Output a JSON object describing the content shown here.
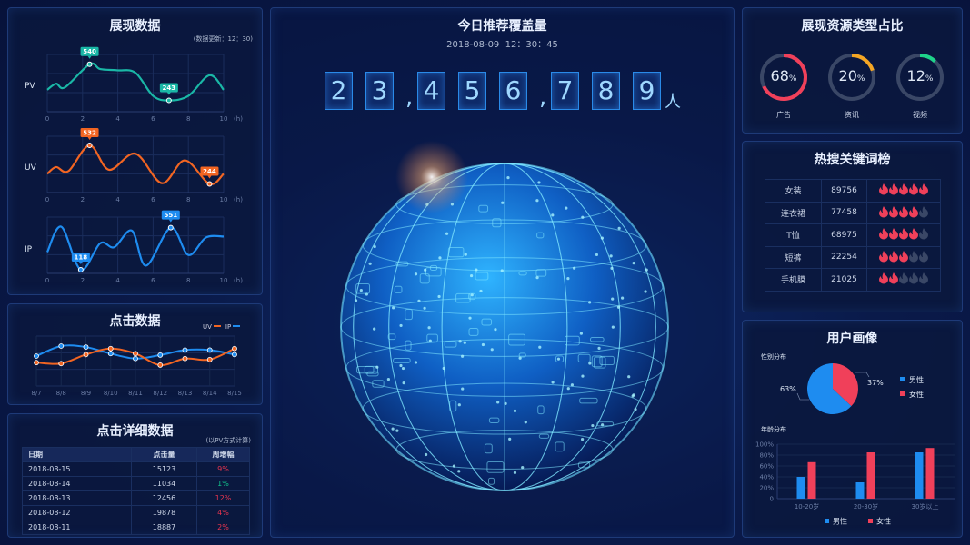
{
  "panels": {
    "display": {
      "title": "展现数据",
      "update": "(数据更新：12：30)"
    },
    "clicks": {
      "title": "点击数据"
    },
    "details": {
      "title": "点击详细数据",
      "note": "(以PV方式计算)",
      "headers": [
        "日期",
        "点击量",
        "周增幅"
      ],
      "rows": [
        [
          "2018-08-15",
          "15123",
          "9%"
        ],
        [
          "2018-08-14",
          "11034",
          "1%"
        ],
        [
          "2018-08-13",
          "12456",
          "12%"
        ],
        [
          "2018-08-12",
          "19878",
          "4%"
        ],
        [
          "2018-08-11",
          "18887",
          "2%"
        ]
      ],
      "change_colors": [
        "#e8354f",
        "#12c08a",
        "#e8354f",
        "#e8354f",
        "#e8354f"
      ]
    },
    "center": {
      "title": "今日推荐覆盖量",
      "datetime": "2018-08-09  12：30：45",
      "digits": [
        "2",
        "3",
        ",",
        "4",
        "5",
        "6",
        ",",
        "7",
        "8",
        "9"
      ],
      "unit": "人"
    },
    "resource": {
      "title": "展现资源类型占比",
      "items": [
        {
          "label": "广告",
          "value": 68,
          "color": "#f0405a"
        },
        {
          "label": "资讯",
          "value": 20,
          "color": "#f5a623"
        },
        {
          "label": "视频",
          "value": 12,
          "color": "#1ed38a"
        }
      ],
      "pct": "%"
    },
    "hot": {
      "title": "热搜关键词榜",
      "rows": [
        {
          "word": "女装",
          "count": "89756",
          "rating": 5
        },
        {
          "word": "连衣裙",
          "count": "77458",
          "rating": 4
        },
        {
          "word": "T恤",
          "count": "68975",
          "rating": 4
        },
        {
          "word": "短裤",
          "count": "22254",
          "rating": 3
        },
        {
          "word": "手机膜",
          "count": "21025",
          "rating": 2
        }
      ],
      "flame_on": "#f0405a",
      "flame_off": "#3a4766",
      "icon": "flame-icon"
    },
    "user": {
      "title": "用户画像",
      "gender_title": "性别分布",
      "age_title": "年龄分布"
    }
  },
  "chart_data": [
    {
      "type": "line",
      "name": "PV",
      "color": "#1ab7a6",
      "x": [
        0,
        0.5,
        1,
        2.4,
        3,
        4,
        5,
        6,
        6.9,
        8,
        9.2,
        10
      ],
      "y": [
        330,
        380,
        350,
        540,
        500,
        490,
        470,
        280,
        243,
        280,
        450,
        330
      ],
      "labels": [
        {
          "x": 2.4,
          "text": "540"
        },
        {
          "x": 6.9,
          "text": "243"
        }
      ],
      "xticks": [
        "0",
        "2",
        "4",
        "6",
        "8",
        "10"
      ],
      "xunit": "(h)",
      "xlim": [
        0,
        10
      ],
      "ylim": [
        150,
        620
      ],
      "grid": true
    },
    {
      "type": "line",
      "name": "UV",
      "color": "#f26522",
      "x": [
        0,
        0.5,
        1.2,
        2.4,
        3.5,
        5,
        6.5,
        7.8,
        9.2,
        10
      ],
      "y": [
        320,
        370,
        340,
        532,
        350,
        470,
        250,
        420,
        244,
        320
      ],
      "labels": [
        {
          "x": 2.4,
          "text": "532"
        },
        {
          "x": 9.2,
          "text": "244"
        }
      ],
      "xticks": [
        "0",
        "2",
        "4",
        "6",
        "8",
        "10"
      ],
      "xunit": "(h)",
      "xlim": [
        0,
        10
      ],
      "ylim": [
        180,
        600
      ],
      "grid": true
    },
    {
      "type": "line",
      "name": "IP",
      "color": "#1e8cf0",
      "x": [
        0,
        0.8,
        1.9,
        3,
        3.8,
        4.8,
        5.6,
        7,
        8,
        9,
        10
      ],
      "y": [
        300,
        560,
        118,
        390,
        350,
        520,
        160,
        551,
        270,
        450,
        460
      ],
      "labels": [
        {
          "x": 1.9,
          "text": "118"
        },
        {
          "x": 7,
          "text": "551"
        }
      ],
      "xticks": [
        "0",
        "2",
        "4",
        "6",
        "8",
        "10"
      ],
      "xunit": "(h)",
      "xlim": [
        0,
        10
      ],
      "ylim": [
        80,
        660
      ],
      "grid": true
    },
    {
      "type": "line",
      "categories": [
        "8/7",
        "8/8",
        "8/9",
        "8/10",
        "8/11",
        "8/12",
        "8/13",
        "8/14",
        "8/15"
      ],
      "series": [
        {
          "name": "UV",
          "color": "#f26522",
          "values": [
            47,
            45,
            63,
            75,
            65,
            42,
            55,
            53,
            75
          ]
        },
        {
          "name": "IP",
          "color": "#1e8cf0",
          "values": [
            60,
            80,
            78,
            65,
            55,
            62,
            72,
            72,
            63
          ]
        }
      ],
      "ylim": [
        0,
        100
      ],
      "legend": "top-right",
      "grid": true
    },
    {
      "type": "pie",
      "categories": [
        "男性",
        "女性"
      ],
      "values": [
        63,
        37
      ],
      "colors": [
        "#1e8cf0",
        "#f0405a"
      ],
      "labels": [
        "63%",
        "37%"
      ],
      "legend": "right"
    },
    {
      "type": "bar",
      "categories": [
        "10-20岁",
        "20-30岁",
        "30岁以上"
      ],
      "series": [
        {
          "name": "男性",
          "color": "#1e8cf0",
          "values": [
            40,
            30,
            85
          ]
        },
        {
          "name": "女性",
          "color": "#f0405a",
          "values": [
            67,
            85,
            93
          ]
        }
      ],
      "yticks": [
        "0",
        "20%",
        "40%",
        "60%",
        "80%",
        "100%"
      ],
      "ylim": [
        0,
        100
      ],
      "legend": "bottom"
    }
  ]
}
